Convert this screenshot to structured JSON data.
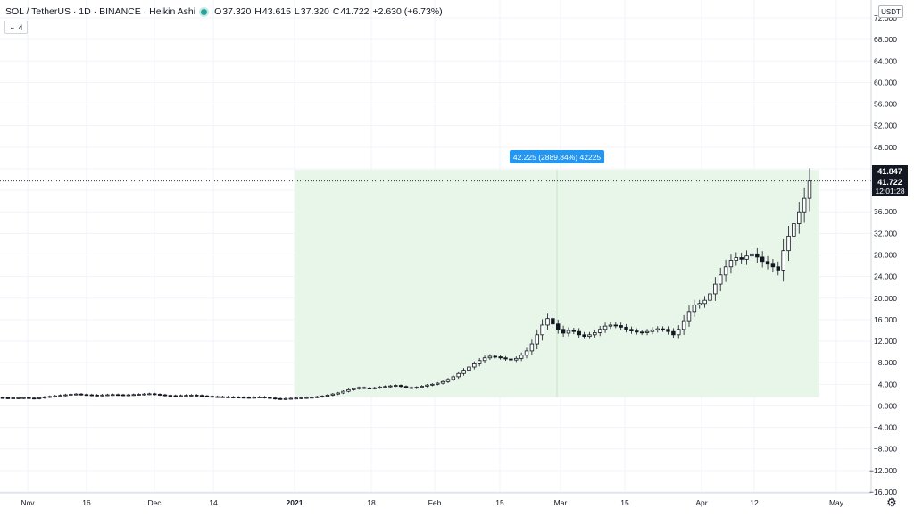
{
  "header": {
    "symbol": "SOL / TetherUS",
    "interval": "1D",
    "exchange": "BINANCE",
    "chart_style": "Heikin Ashi",
    "ohlc": {
      "o_label": "O",
      "o": "37.320",
      "h_label": "H",
      "h": "43.615",
      "l_label": "L",
      "l": "37.320",
      "c_label": "C",
      "c": "41.722",
      "change": "+2.630 (+6.73%)"
    },
    "collapse_count": "4"
  },
  "price_scale": {
    "currency": "USDT"
  },
  "badges": {
    "high": "41.847",
    "last": "41.722",
    "countdown": "12:01:28"
  },
  "measure_label": "42.225 (2889.84%) 42225",
  "colors": {
    "range_fill": "#e8f5e9",
    "label_bg": "#2196f3",
    "grid": "#f0f3fa",
    "candle": "#131722",
    "current_price_line": "#131722"
  },
  "icons": {
    "settings": "gear-icon",
    "collapse": "chevron-down-icon",
    "live": "live-status-icon"
  },
  "chart_data": {
    "type": "candlestick",
    "y_ticks": [
      "72.000",
      "68.000",
      "64.000",
      "60.000",
      "56.000",
      "52.000",
      "48.000",
      "44.000",
      "40.000",
      "36.000",
      "32.000",
      "28.000",
      "24.000",
      "20.000",
      "16.000",
      "12.000",
      "8.000",
      "4.000",
      "0.000",
      "−4.000",
      "−8.000",
      "−12.000",
      "−16.000"
    ],
    "x_ticks": [
      "Nov",
      "16",
      "Dec",
      "14",
      "2021",
      "18",
      "Feb",
      "15",
      "Mar",
      "15",
      "Apr",
      "12",
      "May"
    ],
    "ylim": [
      -16,
      72
    ],
    "measure_range": {
      "from": 1.6,
      "to": 43.8
    },
    "series_open_close": [
      [
        1.55,
        1.5
      ],
      [
        1.5,
        1.45
      ],
      [
        1.45,
        1.48
      ],
      [
        1.48,
        1.5
      ],
      [
        1.5,
        1.52
      ],
      [
        1.52,
        1.45
      ],
      [
        1.45,
        1.4
      ],
      [
        1.4,
        1.5
      ],
      [
        1.5,
        1.65
      ],
      [
        1.65,
        1.75
      ],
      [
        1.75,
        1.85
      ],
      [
        1.85,
        1.95
      ],
      [
        1.95,
        2.05
      ],
      [
        2.05,
        2.15
      ],
      [
        2.15,
        2.2
      ],
      [
        2.2,
        2.1
      ],
      [
        2.1,
        2.05
      ],
      [
        2.05,
        2.0
      ],
      [
        2.0,
        1.98
      ],
      [
        1.98,
        2.02
      ],
      [
        2.02,
        2.06
      ],
      [
        2.06,
        2.1
      ],
      [
        2.1,
        2.06
      ],
      [
        2.06,
        2.0
      ],
      [
        2.0,
        2.05
      ],
      [
        2.05,
        2.1
      ],
      [
        2.1,
        2.15
      ],
      [
        2.15,
        2.2
      ],
      [
        2.2,
        2.25
      ],
      [
        2.25,
        2.15
      ],
      [
        2.15,
        2.05
      ],
      [
        2.05,
        1.95
      ],
      [
        1.95,
        1.9
      ],
      [
        1.9,
        1.88
      ],
      [
        1.88,
        1.92
      ],
      [
        1.92,
        1.96
      ],
      [
        1.96,
        2.0
      ],
      [
        2.0,
        1.95
      ],
      [
        1.95,
        1.85
      ],
      [
        1.85,
        1.78
      ],
      [
        1.78,
        1.72
      ],
      [
        1.72,
        1.7
      ],
      [
        1.7,
        1.68
      ],
      [
        1.68,
        1.65
      ],
      [
        1.65,
        1.63
      ],
      [
        1.63,
        1.6
      ],
      [
        1.6,
        1.58
      ],
      [
        1.58,
        1.55
      ],
      [
        1.55,
        1.6
      ],
      [
        1.6,
        1.65
      ],
      [
        1.65,
        1.55
      ],
      [
        1.55,
        1.45
      ],
      [
        1.45,
        1.35
      ],
      [
        1.35,
        1.3
      ],
      [
        1.3,
        1.35
      ],
      [
        1.35,
        1.4
      ],
      [
        1.4,
        1.45
      ],
      [
        1.45,
        1.5
      ],
      [
        1.5,
        1.55
      ],
      [
        1.55,
        1.6
      ],
      [
        1.6,
        1.7
      ],
      [
        1.7,
        1.8
      ],
      [
        1.8,
        2.0
      ],
      [
        2.0,
        2.2
      ],
      [
        2.2,
        2.4
      ],
      [
        2.4,
        2.7
      ],
      [
        2.7,
        3.0
      ],
      [
        3.0,
        3.2
      ],
      [
        3.2,
        3.4
      ],
      [
        3.4,
        3.3
      ],
      [
        3.3,
        3.25
      ],
      [
        3.25,
        3.35
      ],
      [
        3.35,
        3.5
      ],
      [
        3.5,
        3.6
      ],
      [
        3.6,
        3.7
      ],
      [
        3.7,
        3.8
      ],
      [
        3.8,
        3.6
      ],
      [
        3.6,
        3.4
      ],
      [
        3.4,
        3.3
      ],
      [
        3.3,
        3.45
      ],
      [
        3.45,
        3.65
      ],
      [
        3.65,
        3.85
      ],
      [
        3.85,
        4.0
      ],
      [
        4.0,
        4.2
      ],
      [
        4.2,
        4.5
      ],
      [
        4.5,
        4.9
      ],
      [
        4.9,
        5.4
      ],
      [
        5.4,
        6.0
      ],
      [
        6.0,
        6.6
      ],
      [
        6.6,
        7.2
      ],
      [
        7.2,
        7.8
      ],
      [
        7.8,
        8.4
      ],
      [
        8.4,
        8.9
      ],
      [
        8.9,
        9.2
      ],
      [
        9.2,
        9.1
      ],
      [
        9.1,
        8.9
      ],
      [
        8.9,
        8.7
      ],
      [
        8.7,
        8.5
      ],
      [
        8.5,
        8.8
      ],
      [
        8.8,
        9.4
      ],
      [
        9.4,
        10.2
      ],
      [
        10.2,
        11.5
      ],
      [
        11.5,
        13.2
      ],
      [
        13.2,
        15.0
      ],
      [
        15.0,
        16.2
      ],
      [
        16.2,
        15.2
      ],
      [
        15.2,
        14.2
      ],
      [
        14.2,
        13.5
      ],
      [
        13.5,
        14.0
      ],
      [
        14.0,
        13.8
      ],
      [
        13.8,
        13.2
      ],
      [
        13.2,
        12.9
      ],
      [
        12.9,
        13.2
      ],
      [
        13.2,
        13.6
      ],
      [
        13.6,
        14.2
      ],
      [
        14.2,
        14.8
      ],
      [
        14.8,
        15.0
      ],
      [
        15.0,
        14.9
      ],
      [
        14.9,
        14.6
      ],
      [
        14.6,
        14.2
      ],
      [
        14.2,
        13.9
      ],
      [
        13.9,
        13.7
      ],
      [
        13.7,
        13.6
      ],
      [
        13.6,
        13.8
      ],
      [
        13.8,
        14.1
      ],
      [
        14.1,
        14.3
      ],
      [
        14.3,
        14.2
      ],
      [
        14.2,
        13.8
      ],
      [
        13.8,
        13.2
      ],
      [
        13.2,
        14.2
      ],
      [
        14.2,
        15.8
      ],
      [
        15.8,
        17.5
      ],
      [
        17.5,
        18.7
      ],
      [
        18.7,
        19.0
      ],
      [
        19.0,
        19.6
      ],
      [
        19.6,
        20.8
      ],
      [
        20.8,
        22.6
      ],
      [
        22.6,
        24.3
      ],
      [
        24.3,
        25.8
      ],
      [
        25.8,
        27.0
      ],
      [
        27.0,
        27.5
      ],
      [
        27.5,
        27.2
      ],
      [
        27.2,
        27.8
      ],
      [
        27.8,
        28.2
      ],
      [
        28.2,
        27.6
      ],
      [
        27.6,
        26.8
      ],
      [
        26.8,
        26.3
      ],
      [
        26.3,
        25.8
      ],
      [
        25.8,
        25.2
      ],
      [
        25.2,
        28.8
      ],
      [
        28.8,
        31.5
      ],
      [
        31.5,
        33.8
      ],
      [
        33.8,
        36.0
      ],
      [
        36.0,
        38.5
      ],
      [
        38.5,
        41.72
      ]
    ]
  }
}
